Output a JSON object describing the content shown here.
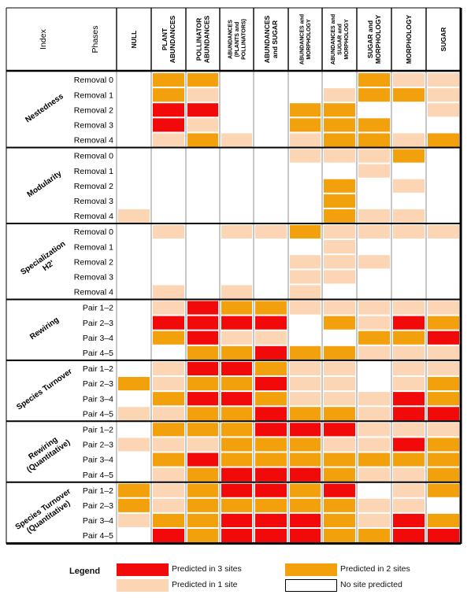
{
  "chart_data": {
    "type": "heatmap",
    "header": {
      "index_label": "Index",
      "phases_label": "Phases"
    },
    "columns": [
      "NULL",
      "PLANT ABUNDANCES",
      "POLLINATOR ABUNDANCES",
      "ABUNDANCES (PLANTS and POLLINATORS)",
      "ABUNDANCES and SUGAR",
      "ABUNDANCES and MORPHOLOGY",
      "ABUNDANCES and SUGAR and MORPHOLOGY",
      "SUGAR and MORPHOLOGY",
      "MORPHOLOGY",
      "SUGAR"
    ],
    "color_scale": {
      "0": "#ffffff",
      "1": "#fcd5b4",
      "2": "#f2a10d",
      "3": "#f20a0a"
    },
    "groups": [
      {
        "label": "Nestedness",
        "phases": [
          "Removal 0",
          "Removal 1",
          "Removal 2",
          "Removal 3",
          "Removal 4"
        ],
        "values": [
          [
            0,
            2,
            2,
            0,
            0,
            0,
            0,
            2,
            1,
            1
          ],
          [
            0,
            2,
            1,
            0,
            0,
            0,
            1,
            2,
            2,
            1
          ],
          [
            0,
            3,
            3,
            0,
            0,
            2,
            2,
            0,
            0,
            1
          ],
          [
            0,
            3,
            1,
            0,
            0,
            2,
            2,
            2,
            0,
            0
          ],
          [
            0,
            1,
            2,
            1,
            0,
            1,
            2,
            2,
            1,
            2
          ]
        ]
      },
      {
        "label": "Modularity",
        "phases": [
          "Removal 0",
          "Removal 1",
          "Removal 2",
          "Removal 3",
          "Removal 4"
        ],
        "values": [
          [
            0,
            0,
            0,
            0,
            0,
            1,
            1,
            1,
            2,
            0
          ],
          [
            0,
            0,
            0,
            0,
            0,
            0,
            0,
            1,
            0,
            0
          ],
          [
            0,
            0,
            0,
            0,
            0,
            0,
            2,
            0,
            1,
            0
          ],
          [
            0,
            0,
            0,
            0,
            0,
            0,
            2,
            0,
            0,
            0
          ],
          [
            1,
            0,
            0,
            0,
            0,
            0,
            2,
            1,
            1,
            0
          ]
        ]
      },
      {
        "label": "Specialization H2'",
        "phases": [
          "Removal 0",
          "Removal 1",
          "Removal 2",
          "Removal 3",
          "Removal 4"
        ],
        "values": [
          [
            0,
            1,
            0,
            1,
            1,
            2,
            1,
            1,
            1,
            1
          ],
          [
            0,
            0,
            0,
            0,
            0,
            0,
            1,
            0,
            0,
            0
          ],
          [
            0,
            0,
            0,
            0,
            0,
            1,
            1,
            1,
            0,
            0
          ],
          [
            0,
            0,
            0,
            0,
            0,
            1,
            1,
            0,
            0,
            0
          ],
          [
            0,
            1,
            0,
            1,
            0,
            1,
            0,
            0,
            0,
            0
          ]
        ]
      },
      {
        "label": "Rewiring",
        "phases": [
          "Pair 1–2",
          "Pair 2–3",
          "Pair 3–4",
          "Pair 4–5"
        ],
        "values": [
          [
            0,
            1,
            3,
            2,
            2,
            1,
            1,
            1,
            1,
            1
          ],
          [
            0,
            3,
            3,
            3,
            3,
            0,
            2,
            1,
            3,
            2
          ],
          [
            0,
            2,
            3,
            1,
            1,
            0,
            0,
            2,
            2,
            3
          ],
          [
            0,
            0,
            2,
            2,
            3,
            2,
            2,
            1,
            1,
            1
          ]
        ]
      },
      {
        "label": "Species Turnover",
        "phases": [
          "Pair 1–2",
          "Pair 2–3",
          "Pair 3–4",
          "Pair 4–5"
        ],
        "values": [
          [
            0,
            1,
            3,
            3,
            2,
            1,
            1,
            0,
            1,
            1
          ],
          [
            2,
            1,
            2,
            2,
            3,
            1,
            1,
            0,
            1,
            2
          ],
          [
            0,
            2,
            3,
            3,
            2,
            1,
            1,
            1,
            3,
            2
          ],
          [
            1,
            1,
            2,
            2,
            3,
            2,
            2,
            1,
            3,
            3
          ]
        ]
      },
      {
        "label": "Rewiring (Quantitative)",
        "phases": [
          "Pair 1–2",
          "Pair 2–3",
          "Pair 3–4",
          "Pair 4–5"
        ],
        "values": [
          [
            0,
            2,
            2,
            2,
            3,
            3,
            3,
            1,
            1,
            1
          ],
          [
            1,
            1,
            1,
            2,
            2,
            2,
            1,
            1,
            3,
            2
          ],
          [
            0,
            2,
            3,
            2,
            2,
            2,
            2,
            2,
            2,
            2
          ],
          [
            0,
            1,
            2,
            3,
            3,
            3,
            2,
            1,
            1,
            2
          ]
        ]
      },
      {
        "label": "Species Turnover (Quantitative)",
        "phases": [
          "Pair 1–2",
          "Pair 2–3",
          "Pair 3–4",
          "Pair 4–5"
        ],
        "values": [
          [
            2,
            1,
            2,
            3,
            3,
            2,
            3,
            0,
            1,
            2
          ],
          [
            2,
            1,
            2,
            2,
            2,
            2,
            2,
            1,
            1,
            0
          ],
          [
            1,
            2,
            2,
            3,
            3,
            3,
            2,
            1,
            3,
            2
          ],
          [
            0,
            3,
            2,
            3,
            3,
            3,
            2,
            2,
            3,
            3
          ]
        ]
      }
    ],
    "legend": {
      "title": "Legend",
      "items": [
        {
          "label": "Predicted in 3 sites",
          "color": "#f20a0a"
        },
        {
          "label": "Predicted in 2 sites",
          "color": "#f2a10d"
        },
        {
          "label": "Predicted in 1 site",
          "color": "#fcd5b4"
        },
        {
          "label": "No site predicted",
          "color": "#ffffff"
        }
      ]
    }
  }
}
